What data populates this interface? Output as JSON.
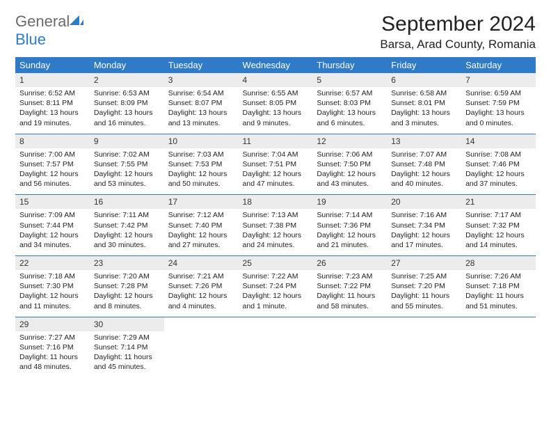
{
  "brand": {
    "part1": "General",
    "part2": "Blue"
  },
  "title": "September 2024",
  "location": "Barsa, Arad County, Romania",
  "colors": {
    "header_bg": "#2f7bc8",
    "header_text": "#ffffff",
    "daynum_bg": "#ececec",
    "text": "#222222",
    "logo_gray": "#6a6a6a",
    "logo_blue": "#2f7bc8",
    "page_bg": "#ffffff"
  },
  "weekdays": [
    "Sunday",
    "Monday",
    "Tuesday",
    "Wednesday",
    "Thursday",
    "Friday",
    "Saturday"
  ],
  "weeks": [
    [
      {
        "day": "1",
        "sunrise": "Sunrise: 6:52 AM",
        "sunset": "Sunset: 8:11 PM",
        "dl1": "Daylight: 13 hours",
        "dl2": "and 19 minutes."
      },
      {
        "day": "2",
        "sunrise": "Sunrise: 6:53 AM",
        "sunset": "Sunset: 8:09 PM",
        "dl1": "Daylight: 13 hours",
        "dl2": "and 16 minutes."
      },
      {
        "day": "3",
        "sunrise": "Sunrise: 6:54 AM",
        "sunset": "Sunset: 8:07 PM",
        "dl1": "Daylight: 13 hours",
        "dl2": "and 13 minutes."
      },
      {
        "day": "4",
        "sunrise": "Sunrise: 6:55 AM",
        "sunset": "Sunset: 8:05 PM",
        "dl1": "Daylight: 13 hours",
        "dl2": "and 9 minutes."
      },
      {
        "day": "5",
        "sunrise": "Sunrise: 6:57 AM",
        "sunset": "Sunset: 8:03 PM",
        "dl1": "Daylight: 13 hours",
        "dl2": "and 6 minutes."
      },
      {
        "day": "6",
        "sunrise": "Sunrise: 6:58 AM",
        "sunset": "Sunset: 8:01 PM",
        "dl1": "Daylight: 13 hours",
        "dl2": "and 3 minutes."
      },
      {
        "day": "7",
        "sunrise": "Sunrise: 6:59 AM",
        "sunset": "Sunset: 7:59 PM",
        "dl1": "Daylight: 13 hours",
        "dl2": "and 0 minutes."
      }
    ],
    [
      {
        "day": "8",
        "sunrise": "Sunrise: 7:00 AM",
        "sunset": "Sunset: 7:57 PM",
        "dl1": "Daylight: 12 hours",
        "dl2": "and 56 minutes."
      },
      {
        "day": "9",
        "sunrise": "Sunrise: 7:02 AM",
        "sunset": "Sunset: 7:55 PM",
        "dl1": "Daylight: 12 hours",
        "dl2": "and 53 minutes."
      },
      {
        "day": "10",
        "sunrise": "Sunrise: 7:03 AM",
        "sunset": "Sunset: 7:53 PM",
        "dl1": "Daylight: 12 hours",
        "dl2": "and 50 minutes."
      },
      {
        "day": "11",
        "sunrise": "Sunrise: 7:04 AM",
        "sunset": "Sunset: 7:51 PM",
        "dl1": "Daylight: 12 hours",
        "dl2": "and 47 minutes."
      },
      {
        "day": "12",
        "sunrise": "Sunrise: 7:06 AM",
        "sunset": "Sunset: 7:50 PM",
        "dl1": "Daylight: 12 hours",
        "dl2": "and 43 minutes."
      },
      {
        "day": "13",
        "sunrise": "Sunrise: 7:07 AM",
        "sunset": "Sunset: 7:48 PM",
        "dl1": "Daylight: 12 hours",
        "dl2": "and 40 minutes."
      },
      {
        "day": "14",
        "sunrise": "Sunrise: 7:08 AM",
        "sunset": "Sunset: 7:46 PM",
        "dl1": "Daylight: 12 hours",
        "dl2": "and 37 minutes."
      }
    ],
    [
      {
        "day": "15",
        "sunrise": "Sunrise: 7:09 AM",
        "sunset": "Sunset: 7:44 PM",
        "dl1": "Daylight: 12 hours",
        "dl2": "and 34 minutes."
      },
      {
        "day": "16",
        "sunrise": "Sunrise: 7:11 AM",
        "sunset": "Sunset: 7:42 PM",
        "dl1": "Daylight: 12 hours",
        "dl2": "and 30 minutes."
      },
      {
        "day": "17",
        "sunrise": "Sunrise: 7:12 AM",
        "sunset": "Sunset: 7:40 PM",
        "dl1": "Daylight: 12 hours",
        "dl2": "and 27 minutes."
      },
      {
        "day": "18",
        "sunrise": "Sunrise: 7:13 AM",
        "sunset": "Sunset: 7:38 PM",
        "dl1": "Daylight: 12 hours",
        "dl2": "and 24 minutes."
      },
      {
        "day": "19",
        "sunrise": "Sunrise: 7:14 AM",
        "sunset": "Sunset: 7:36 PM",
        "dl1": "Daylight: 12 hours",
        "dl2": "and 21 minutes."
      },
      {
        "day": "20",
        "sunrise": "Sunrise: 7:16 AM",
        "sunset": "Sunset: 7:34 PM",
        "dl1": "Daylight: 12 hours",
        "dl2": "and 17 minutes."
      },
      {
        "day": "21",
        "sunrise": "Sunrise: 7:17 AM",
        "sunset": "Sunset: 7:32 PM",
        "dl1": "Daylight: 12 hours",
        "dl2": "and 14 minutes."
      }
    ],
    [
      {
        "day": "22",
        "sunrise": "Sunrise: 7:18 AM",
        "sunset": "Sunset: 7:30 PM",
        "dl1": "Daylight: 12 hours",
        "dl2": "and 11 minutes."
      },
      {
        "day": "23",
        "sunrise": "Sunrise: 7:20 AM",
        "sunset": "Sunset: 7:28 PM",
        "dl1": "Daylight: 12 hours",
        "dl2": "and 8 minutes."
      },
      {
        "day": "24",
        "sunrise": "Sunrise: 7:21 AM",
        "sunset": "Sunset: 7:26 PM",
        "dl1": "Daylight: 12 hours",
        "dl2": "and 4 minutes."
      },
      {
        "day": "25",
        "sunrise": "Sunrise: 7:22 AM",
        "sunset": "Sunset: 7:24 PM",
        "dl1": "Daylight: 12 hours",
        "dl2": "and 1 minute."
      },
      {
        "day": "26",
        "sunrise": "Sunrise: 7:23 AM",
        "sunset": "Sunset: 7:22 PM",
        "dl1": "Daylight: 11 hours",
        "dl2": "and 58 minutes."
      },
      {
        "day": "27",
        "sunrise": "Sunrise: 7:25 AM",
        "sunset": "Sunset: 7:20 PM",
        "dl1": "Daylight: 11 hours",
        "dl2": "and 55 minutes."
      },
      {
        "day": "28",
        "sunrise": "Sunrise: 7:26 AM",
        "sunset": "Sunset: 7:18 PM",
        "dl1": "Daylight: 11 hours",
        "dl2": "and 51 minutes."
      }
    ],
    [
      {
        "day": "29",
        "sunrise": "Sunrise: 7:27 AM",
        "sunset": "Sunset: 7:16 PM",
        "dl1": "Daylight: 11 hours",
        "dl2": "and 48 minutes."
      },
      {
        "day": "30",
        "sunrise": "Sunrise: 7:29 AM",
        "sunset": "Sunset: 7:14 PM",
        "dl1": "Daylight: 11 hours",
        "dl2": "and 45 minutes."
      },
      null,
      null,
      null,
      null,
      null
    ]
  ]
}
